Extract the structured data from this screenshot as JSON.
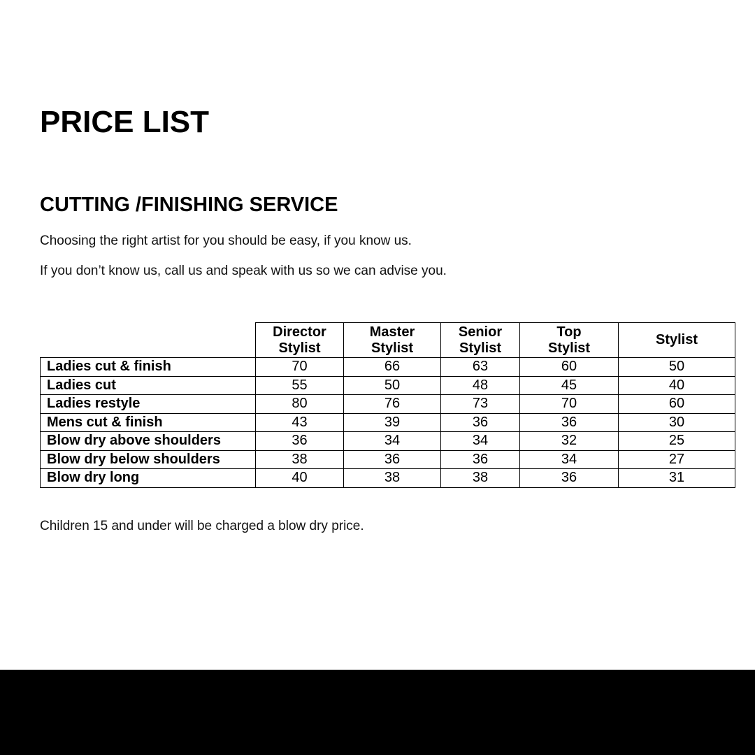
{
  "title": "PRICE LIST",
  "section_title": "CUTTING /FINISHING SERVICE",
  "intro": [
    "Choosing the right artist for you should be easy, if you know us.",
    "If you don’t know us, call us and speak with us so we can advise you."
  ],
  "table": {
    "headers": [
      [
        "Director",
        "Stylist"
      ],
      [
        "Master",
        "Stylist"
      ],
      [
        "Senior",
        "Stylist"
      ],
      [
        "Top",
        "Stylist"
      ],
      [
        "Stylist"
      ]
    ],
    "rows": [
      {
        "service": "Ladies cut & finish",
        "prices": [
          "70",
          "66",
          "63",
          "60",
          "50"
        ]
      },
      {
        "service": "Ladies cut",
        "prices": [
          "55",
          "50",
          "48",
          "45",
          "40"
        ]
      },
      {
        "service": "Ladies restyle",
        "prices": [
          "80",
          "76",
          "73",
          "70",
          "60"
        ]
      },
      {
        "service": "Mens cut & finish",
        "prices": [
          "43",
          "39",
          "36",
          "36",
          "30"
        ]
      },
      {
        "service": "Blow dry above shoulders",
        "prices": [
          "36",
          "34",
          "34",
          "32",
          "25"
        ]
      },
      {
        "service": "Blow dry below shoulders",
        "prices": [
          "38",
          "36",
          "36",
          "34",
          "27"
        ]
      },
      {
        "service": "Blow dry long",
        "prices": [
          "40",
          "38",
          "38",
          "36",
          "31"
        ]
      }
    ]
  },
  "footnote": "Children 15 and under will be charged a blow dry price."
}
